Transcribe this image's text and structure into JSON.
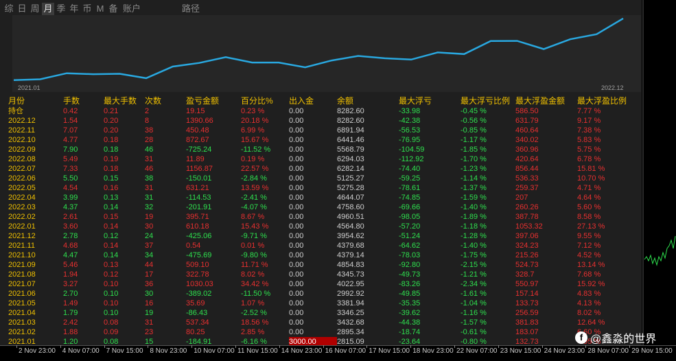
{
  "tabs": [
    "综",
    "日",
    "周",
    "月",
    "季",
    "年",
    "币",
    "M",
    "备",
    "账户"
  ],
  "active_tab": "月",
  "path_label": "路径",
  "chart_start_label": "2021.01",
  "chart_end_label": "2022.12",
  "line_color": "#29a8e0",
  "table": {
    "headers": [
      "月份",
      "手数",
      "最大手数",
      "次数",
      "盈亏金额",
      "百分比%",
      "出入金",
      "余额",
      "最大浮亏",
      "最大浮亏比例",
      "最大浮盈金额",
      "最大浮盈比例"
    ],
    "rows": [
      [
        "持仓",
        "0.42",
        "0.21",
        "2",
        "19.15",
        "0.23 %",
        "0.00",
        "8282.60",
        "-33.98",
        "-0.45 %",
        "586.50",
        "7.77 %"
      ],
      [
        "2022.12",
        "1.54",
        "0.20",
        "8",
        "1390.66",
        "20.18 %",
        "0.00",
        "8282.60",
        "-42.38",
        "-0.56 %",
        "631.79",
        "9.17 %"
      ],
      [
        "2022.11",
        "7.07",
        "0.20",
        "38",
        "450.48",
        "6.99 %",
        "0.00",
        "6891.94",
        "-56.53",
        "-0.85 %",
        "460.64",
        "7.38 %"
      ],
      [
        "2022.10",
        "4.77",
        "0.18",
        "28",
        "872.67",
        "15.67 %",
        "0.00",
        "6441.46",
        "-76.95",
        "-1.17 %",
        "340.02",
        "5.83 %"
      ],
      [
        "2022.09",
        "7.90",
        "0.18",
        "46",
        "-725.24",
        "-11.52 %",
        "0.00",
        "5568.79",
        "-104.59",
        "-1.85 %",
        "360.96",
        "5.75 %"
      ],
      [
        "2022.08",
        "5.49",
        "0.19",
        "31",
        "11.89",
        "0.19 %",
        "0.00",
        "6294.03",
        "-112.92",
        "-1.70 %",
        "420.64",
        "6.78 %"
      ],
      [
        "2022.07",
        "7.33",
        "0.18",
        "46",
        "1156.87",
        "22.57 %",
        "0.00",
        "6282.14",
        "-74.40",
        "-1.23 %",
        "856.44",
        "15.81 %"
      ],
      [
        "2022.06",
        "5.50",
        "0.15",
        "38",
        "-150.01",
        "-2.84 %",
        "0.00",
        "5125.27",
        "-59.25",
        "-1.14 %",
        "536.33",
        "10.70 %"
      ],
      [
        "2022.05",
        "4.54",
        "0.16",
        "31",
        "631.21",
        "13.59 %",
        "0.00",
        "5275.28",
        "-78.61",
        "-1.37 %",
        "259.37",
        "4.71 %"
      ],
      [
        "2022.04",
        "3.99",
        "0.13",
        "31",
        "-114.53",
        "-2.41 %",
        "0.00",
        "4644.07",
        "-74.85",
        "-1.59 %",
        "207",
        "4.64 %"
      ],
      [
        "2022.03",
        "4.37",
        "0.14",
        "32",
        "-201.91",
        "-4.07 %",
        "0.00",
        "4758.60",
        "-69.66",
        "-1.40 %",
        "260.26",
        "5.60 %"
      ],
      [
        "2022.02",
        "2.61",
        "0.15",
        "19",
        "395.71",
        "8.67 %",
        "0.00",
        "4960.51",
        "-98.05",
        "-1.89 %",
        "387.78",
        "8.58 %"
      ],
      [
        "2022.01",
        "3.60",
        "0.14",
        "30",
        "610.18",
        "15.43 %",
        "0.00",
        "4564.80",
        "-57.20",
        "-1.18 %",
        "1053.32",
        "27.13 %"
      ],
      [
        "2021.12",
        "2.78",
        "0.12",
        "24",
        "-425.06",
        "-9.71 %",
        "0.00",
        "3954.62",
        "-51.24",
        "-1.28 %",
        "397.06",
        "9.55 %"
      ],
      [
        "2021.11",
        "4.68",
        "0.14",
        "37",
        "0.54",
        "0.01 %",
        "0.00",
        "4379.68",
        "-64.62",
        "-1.40 %",
        "324.23",
        "7.12 %"
      ],
      [
        "2021.10",
        "4.47",
        "0.14",
        "34",
        "-475.69",
        "-9.80 %",
        "0.00",
        "4379.14",
        "-78.03",
        "-1.75 %",
        "215.26",
        "4.52 %"
      ],
      [
        "2021.09",
        "5.46",
        "0.13",
        "44",
        "509.10",
        "11.71 %",
        "0.00",
        "4854.83",
        "-92.80",
        "-2.15 %",
        "524.73",
        "13.14 %"
      ],
      [
        "2021.08",
        "1.94",
        "0.12",
        "17",
        "322.78",
        "8.02 %",
        "0.00",
        "4345.73",
        "-49.73",
        "-1.21 %",
        "328.7",
        "7.68 %"
      ],
      [
        "2021.07",
        "3.27",
        "0.10",
        "36",
        "1030.03",
        "34.42 %",
        "0.00",
        "4022.95",
        "-83.26",
        "-2.34 %",
        "550.97",
        "15.92 %"
      ],
      [
        "2021.06",
        "2.70",
        "0.10",
        "30",
        "-389.02",
        "-11.50 %",
        "0.00",
        "2992.92",
        "-49.85",
        "-1.61 %",
        "157.14",
        "4.83 %"
      ],
      [
        "2021.05",
        "1.49",
        "0.10",
        "16",
        "35.69",
        "1.07 %",
        "0.00",
        "3381.94",
        "-35.35",
        "-1.04 %",
        "133.73",
        "4.13 %"
      ],
      [
        "2021.04",
        "1.79",
        "0.10",
        "19",
        "-86.43",
        "-2.52 %",
        "0.00",
        "3346.25",
        "-39.62",
        "-1.16 %",
        "256.59",
        "8.02 %"
      ],
      [
        "2021.03",
        "2.42",
        "0.08",
        "31",
        "537.34",
        "18.56 %",
        "0.00",
        "3432.68",
        "-44.38",
        "-1.57 %",
        "381.83",
        "12.64 %"
      ],
      [
        "2021.02",
        "1.88",
        "0.09",
        "23",
        "80.25",
        "2.85 %",
        "0.00",
        "2895.34",
        "-18.74",
        "-0.61 %",
        "183.07",
        "6.60 %"
      ],
      [
        "2021.01",
        "1.20",
        "0.08",
        "15",
        "-184.91",
        "-6.16 %",
        "3000.00",
        "2815.09",
        "-23.64",
        "-0.80 %",
        "132.73",
        "4.95 %"
      ]
    ]
  },
  "time_axis": [
    "2 Nov 23:00",
    "4 Nov 07:00",
    "7 Nov 15:00",
    "8 Nov 23:00",
    "10 Nov 07:00",
    "11 Nov 15:00",
    "14 Nov 23:00",
    "16 Nov 07:00",
    "17 Nov 15:00",
    "18 Nov 23:00",
    "22 Nov 07:00",
    "23 Nov 15:00",
    "24 Nov 23:00",
    "28 Nov 07:00",
    "29 Nov 15:00"
  ],
  "watermark": "@鑫淼的世界"
}
